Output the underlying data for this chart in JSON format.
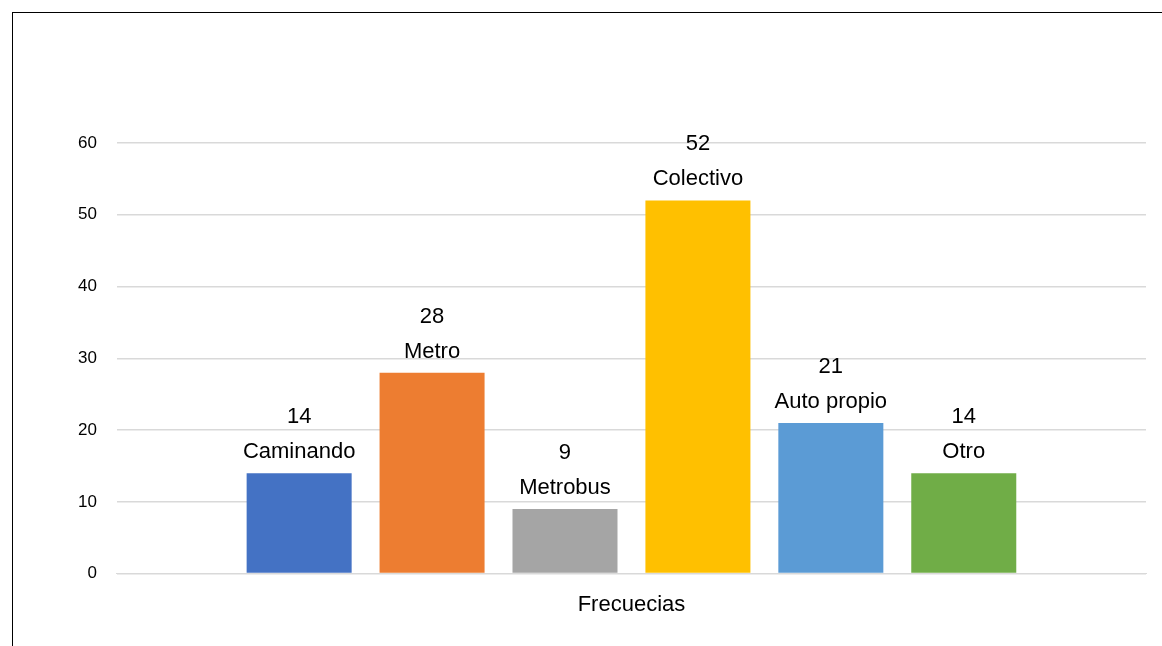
{
  "chart_data": {
    "type": "bar",
    "categories": [
      "Frecuecias"
    ],
    "series": [
      {
        "name": "Caminando",
        "color": "#4472c4",
        "values": [
          14
        ]
      },
      {
        "name": "Metro",
        "color": "#ed7d31",
        "values": [
          28
        ]
      },
      {
        "name": "Metrobus",
        "color": "#a5a5a5",
        "values": [
          9
        ]
      },
      {
        "name": "Colectivo",
        "color": "#ffc000",
        "values": [
          52
        ]
      },
      {
        "name": "Auto propio",
        "color": "#5b9bd5",
        "values": [
          21
        ]
      },
      {
        "name": "Otro",
        "color": "#70ad47",
        "values": [
          14
        ]
      }
    ],
    "ylim": [
      0,
      60
    ],
    "yticks": [
      0,
      10,
      20,
      30,
      40,
      50,
      60
    ],
    "grid": "y",
    "legend": false,
    "data_labels": true
  }
}
